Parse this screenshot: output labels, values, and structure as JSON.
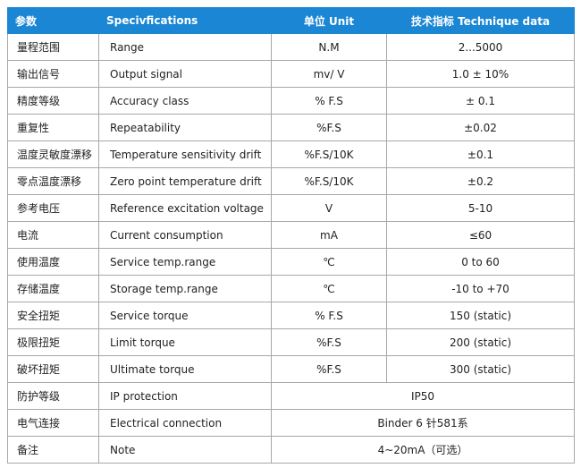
{
  "table": {
    "header": [
      "参数",
      "Specivfications",
      "单位   Unit",
      "技术指标      Technique data"
    ],
    "rows": [
      [
        "量程范围",
        "Range",
        "N.M",
        "2...5000"
      ],
      [
        "输出信号",
        "Output signal",
        "mv/ V",
        "1.0 ± 10%"
      ],
      [
        "精度等级",
        "Accuracy class",
        "% F.S",
        "± 0.1"
      ],
      [
        "重复性",
        "Repeatability",
        "%F.S",
        "±0.02"
      ],
      [
        "温度灵敏度漂移",
        "Temperature sensitivity drift",
        "%F.S/10K",
        "±0.1"
      ],
      [
        "零点温度漂移",
        "Zero point temperature drift",
        "%F.S/10K",
        "±0.2"
      ],
      [
        "参考电压",
        "Reference excitation voltage",
        "V",
        "5-10"
      ],
      [
        "电流",
        "Current consumption",
        "mA",
        "≤60"
      ],
      [
        "使用温度",
        "Service temp.range",
        "℃",
        "0 to 60"
      ],
      [
        "存储温度",
        "Storage temp.range",
        "℃",
        "-10 to +70"
      ],
      [
        "安全扭矩",
        "Service torque",
        "% F.S",
        "150 (static)"
      ],
      [
        "极限扭矩",
        "Limit torque",
        "%F.S",
        "200 (static)"
      ],
      [
        "破坏扭矩",
        "Ultimate torque",
        "%F.S",
        "300 (static)"
      ],
      [
        "防护等级",
        "IP protection",
        "IP50"
      ],
      [
        "电气连接",
        "Electrical connection",
        "Binder 6 针581系"
      ],
      [
        "备注",
        "Note",
        "4~20mA（可选）"
      ]
    ]
  }
}
